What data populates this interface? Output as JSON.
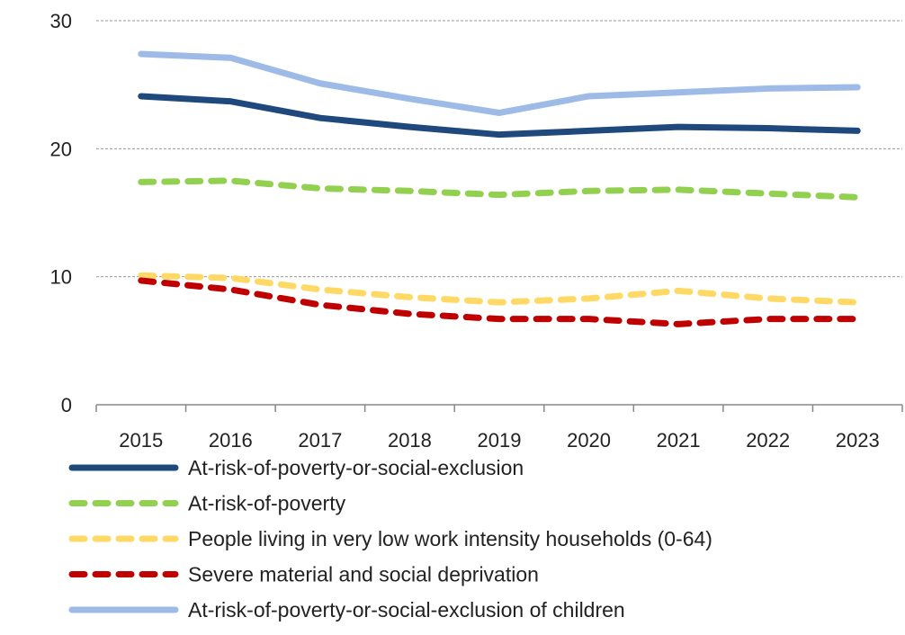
{
  "chart_data": {
    "type": "line",
    "title": "",
    "xlabel": "",
    "ylabel": "",
    "categories": [
      "2015",
      "2016",
      "2017",
      "2018",
      "2019",
      "2020",
      "2021",
      "2022",
      "2023"
    ],
    "ylim": [
      0,
      30
    ],
    "yticks": [
      "0",
      "10",
      "20",
      "30"
    ],
    "grid": true,
    "legend_position": "bottom",
    "series": [
      {
        "name": "At-risk-of-poverty-or-social-exclusion",
        "color": "#1F497D",
        "dash": "solid",
        "values": [
          24.1,
          23.7,
          22.4,
          21.7,
          21.1,
          21.4,
          21.7,
          21.6,
          21.4
        ]
      },
      {
        "name": "At-risk-of-poverty",
        "color": "#92D050",
        "dash": "dashed",
        "values": [
          17.4,
          17.5,
          16.9,
          16.7,
          16.4,
          16.7,
          16.8,
          16.5,
          16.2
        ]
      },
      {
        "name": "People living in very low work intensity households (0-64)",
        "color": "#FFD966",
        "dash": "dashed",
        "values": [
          10.1,
          9.9,
          9.0,
          8.4,
          8.0,
          8.3,
          8.9,
          8.3,
          8.0
        ]
      },
      {
        "name": "Severe material and social deprivation",
        "color": "#C00000",
        "dash": "dashed",
        "values": [
          9.7,
          9.0,
          7.8,
          7.1,
          6.7,
          6.7,
          6.3,
          6.7,
          6.7
        ]
      },
      {
        "name": "At-risk-of-poverty-or-social-exclusion of children",
        "color": "#9DBBE6",
        "dash": "solid",
        "values": [
          27.4,
          27.1,
          25.1,
          23.9,
          22.8,
          24.1,
          24.4,
          24.7,
          24.8
        ]
      }
    ]
  }
}
